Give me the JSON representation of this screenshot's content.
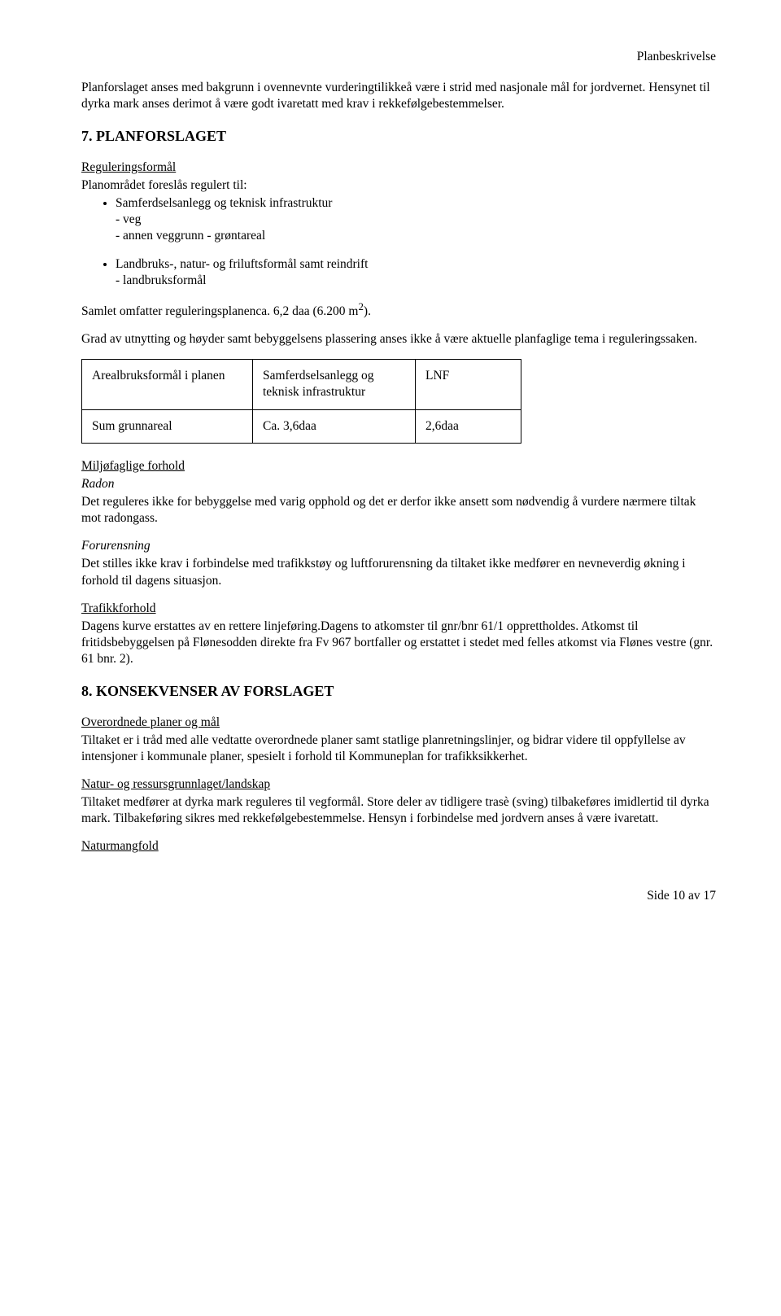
{
  "header": {
    "doc_type": "Planbeskrivelse"
  },
  "intro": {
    "p1": "Planforslaget anses med bakgrunn i ovennevnte vurderingtilikkeå være i strid med nasjonale mål for jordvernet. Hensynet til dyrka mark anses derimot å være godt ivaretatt med krav i rekkefølgebestemmelser."
  },
  "s7": {
    "title": "7. PLANFORSLAGET",
    "reg_heading": "Reguleringsformål",
    "reg_intro": "Planområdet foreslås regulert til:",
    "bullet1": "Samferdselsanlegg og teknisk infrastruktur",
    "bullet1_sub1": "- veg",
    "bullet1_sub2": "- annen veggrunn - grøntareal",
    "bullet2": "Landbruks-, natur- og friluftsformål samt reindrift",
    "bullet2_sub1": "- landbruksformål",
    "samlet": "Samlet omfatter reguleringsplanenca. 6,2 daa (6.200 m",
    "sup": "2",
    "samlet_end": ").",
    "grad": "Grad av utnytting og høyder samt bebyggelsens plassering anses ikke å være aktuelle planfaglige tema i reguleringssaken.",
    "table": {
      "r1c1": "Arealbruksformål i planen",
      "r1c2": "Samferdselsanlegg og teknisk infrastruktur",
      "r1c3": "LNF",
      "r2c1": "Sum grunnareal",
      "r2c2": "Ca. 3,6daa",
      "r2c3": "2,6daa",
      "col_widths": [
        "210px",
        "200px",
        "130px"
      ]
    },
    "miljo_heading": "Miljøfaglige forhold",
    "radon_heading": "Radon",
    "radon_text": "Det reguleres ikke for bebyggelse med varig opphold og det er derfor ikke ansett som nødvendig å vurdere nærmere tiltak mot radongass.",
    "forurensning_heading": "Forurensning",
    "forurensning_text": "Det stilles ikke krav i forbindelse med trafikkstøy og luftforurensning da tiltaket ikke medfører en nevneverdig økning i forhold til dagens situasjon.",
    "trafikk_heading": "Trafikkforhold",
    "trafikk_text": "Dagens kurve erstattes av en rettere linjeføring.Dagens to atkomster til gnr/bnr 61/1 opprettholdes. Atkomst til fritidsbebyggelsen på Flønesodden direkte fra Fv 967 bortfaller og erstattet i stedet med felles atkomst via Flønes vestre (gnr. 61 bnr. 2)."
  },
  "s8": {
    "title": "8. KONSEKVENSER AV FORSLAGET",
    "overordnede_heading": "Overordnede planer og mål",
    "overordnede_text": "Tiltaket er i tråd med alle vedtatte overordnede planer samt statlige planretningslinjer, og bidrar videre til oppfyllelse av intensjoner i kommunale planer, spesielt i forhold til Kommuneplan for trafikksikkerhet.",
    "natur_heading": "Natur- og ressursgrunnlaget/landskap",
    "natur_text": "Tiltaket medfører at dyrka mark reguleres til vegformål. Store deler av tidligere trasè (sving) tilbakeføres imidlertid til dyrka mark. Tilbakeføring sikres med rekkefølgebestemmelse. Hensyn i forbindelse med jordvern anses å være ivaretatt.",
    "naturmangfold_heading": "Naturmangfold"
  },
  "footer": {
    "page": "Side 10 av 17"
  }
}
